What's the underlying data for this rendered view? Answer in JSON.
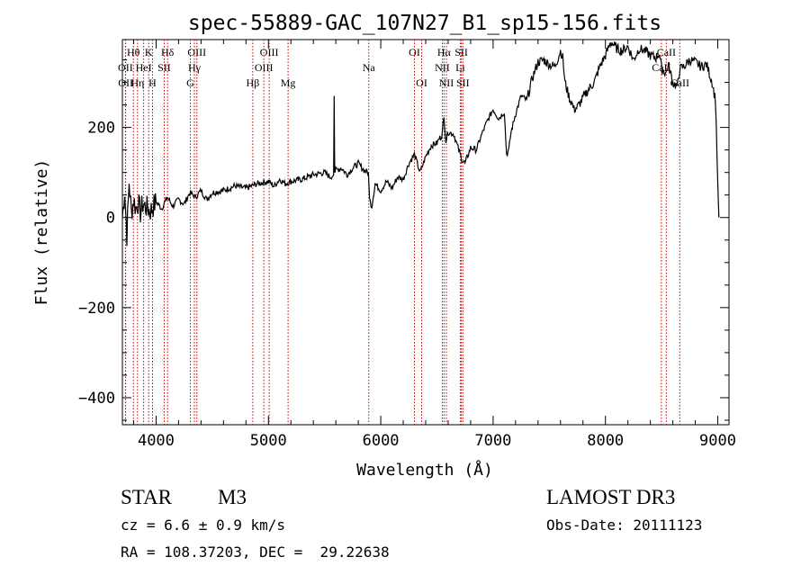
{
  "chart_data": {
    "type": "line",
    "title": "spec-55889-GAC_107N27_B1_sp15-156.fits",
    "xlabel": "Wavelength (Å)",
    "ylabel": "Flux (relative)",
    "xlim": [
      3700,
      9100
    ],
    "ylim": [
      -460,
      395
    ],
    "xticks": [
      4000,
      5000,
      6000,
      7000,
      8000,
      9000
    ],
    "xtick_labels": [
      "4000",
      "5000",
      "6000",
      "7000",
      "8000",
      "9000"
    ],
    "yticks": [
      -400,
      -200,
      0,
      200
    ],
    "ytick_labels": [
      "−400",
      "−200",
      "0",
      "200"
    ],
    "grid": false,
    "series": [
      {
        "name": "spectrum",
        "x": [
          3700,
          3720,
          3740,
          3760,
          3780,
          3800,
          3820,
          3840,
          3860,
          3880,
          3900,
          3950,
          4000,
          4050,
          4100,
          4150,
          4200,
          4250,
          4300,
          4350,
          4400,
          4450,
          4500,
          4600,
          4700,
          4800,
          4900,
          5000,
          5050,
          5100,
          5150,
          5200,
          5300,
          5400,
          5500,
          5550,
          5580,
          5585,
          5590,
          5600,
          5650,
          5700,
          5750,
          5800,
          5850,
          5890,
          5900,
          5920,
          5950,
          6000,
          6050,
          6100,
          6150,
          6200,
          6250,
          6300,
          6350,
          6400,
          6450,
          6500,
          6520,
          6540,
          6563,
          6580,
          6600,
          6650,
          6700,
          6720,
          6750,
          6800,
          6850,
          6900,
          6950,
          7000,
          7050,
          7100,
          7120,
          7140,
          7160,
          7200,
          7250,
          7300,
          7350,
          7400,
          7450,
          7500,
          7550,
          7600,
          7620,
          7640,
          7680,
          7700,
          7720,
          7750,
          7800,
          7850,
          7900,
          7950,
          8000,
          8050,
          8100,
          8150,
          8200,
          8250,
          8300,
          8350,
          8400,
          8450,
          8480,
          8500,
          8540,
          8560,
          8600,
          8640,
          8662,
          8700,
          8750,
          8800,
          8850,
          8900,
          8950,
          8980,
          9000,
          9010
        ],
        "y": [
          0,
          60,
          -40,
          80,
          10,
          40,
          20,
          35,
          10,
          30,
          25,
          15,
          35,
          20,
          45,
          25,
          40,
          30,
          55,
          45,
          60,
          40,
          55,
          60,
          70,
          65,
          75,
          80,
          70,
          85,
          75,
          80,
          85,
          95,
          100,
          90,
          95,
          270,
          100,
          105,
          110,
          95,
          110,
          120,
          105,
          100,
          40,
          25,
          75,
          60,
          80,
          65,
          90,
          85,
          120,
          140,
          100,
          135,
          160,
          165,
          175,
          180,
          220,
          170,
          190,
          185,
          145,
          130,
          120,
          155,
          150,
          185,
          215,
          240,
          220,
          235,
          140,
          150,
          190,
          230,
          270,
          260,
          310,
          345,
          350,
          340,
          335,
          370,
          355,
          300,
          265,
          255,
          240,
          245,
          265,
          285,
          300,
          335,
          360,
          390,
          375,
          370,
          380,
          350,
          375,
          370,
          360,
          355,
          365,
          330,
          320,
          340,
          300,
          290,
          330,
          335,
          350,
          345,
          335,
          340,
          300,
          260,
          80,
          0
        ]
      }
    ],
    "lines": [
      {
        "name": "Hθ",
        "wave": 3798,
        "row": 0
      },
      {
        "name": "OII",
        "wave": 3727,
        "row": 1
      },
      {
        "name": "OII",
        "wave": 3729,
        "row": 2
      },
      {
        "name": "Hη",
        "wave": 3835,
        "row": 2
      },
      {
        "name": "K",
        "wave": 3934,
        "row": 0
      },
      {
        "name": "HeI",
        "wave": 3889,
        "row": 1
      },
      {
        "name": "H",
        "wave": 3968,
        "row": 2
      },
      {
        "name": "SII",
        "wave": 4072,
        "row": 1
      },
      {
        "name": "Hδ",
        "wave": 4102,
        "row": 0
      },
      {
        "name": "OIII",
        "wave": 4363,
        "row": 0
      },
      {
        "name": "Hγ",
        "wave": 4341,
        "row": 1
      },
      {
        "name": "G",
        "wave": 4305,
        "row": 2
      },
      {
        "name": "Hβ",
        "wave": 4861,
        "row": 2
      },
      {
        "name": "OIII",
        "wave": 5007,
        "row": 0
      },
      {
        "name": "OIII",
        "wave": 4959,
        "row": 1
      },
      {
        "name": "Mg",
        "wave": 5175,
        "row": 2
      },
      {
        "name": "Na",
        "wave": 5893,
        "row": 1
      },
      {
        "name": "OI",
        "wave": 6300,
        "row": 0
      },
      {
        "name": "OI",
        "wave": 6364,
        "row": 2
      },
      {
        "name": "Hα",
        "wave": 6563,
        "row": 0
      },
      {
        "name": "NII",
        "wave": 6548,
        "row": 1
      },
      {
        "name": "NII",
        "wave": 6584,
        "row": 2
      },
      {
        "name": "SII",
        "wave": 6717,
        "row": 0
      },
      {
        "name": "Li",
        "wave": 6708,
        "row": 1
      },
      {
        "name": "SII",
        "wave": 6731,
        "row": 2
      },
      {
        "name": "CaII",
        "wave": 8542,
        "row": 0
      },
      {
        "name": "CaII",
        "wave": 8498,
        "row": 1
      },
      {
        "name": "CaII",
        "wave": 8662,
        "row": 2
      }
    ]
  },
  "info": {
    "object_class": "STAR",
    "subclass": "M3",
    "survey": "LAMOST DR3",
    "cz": "cz = 6.6 ± 0.9 km/s",
    "obs_date": "Obs-Date: 20111123",
    "radec": "RA = 108.37203, DEC =  29.22638"
  },
  "colors": {
    "axis": "#000000",
    "line_marker": "#cc0000",
    "spectrum": "#000000"
  }
}
